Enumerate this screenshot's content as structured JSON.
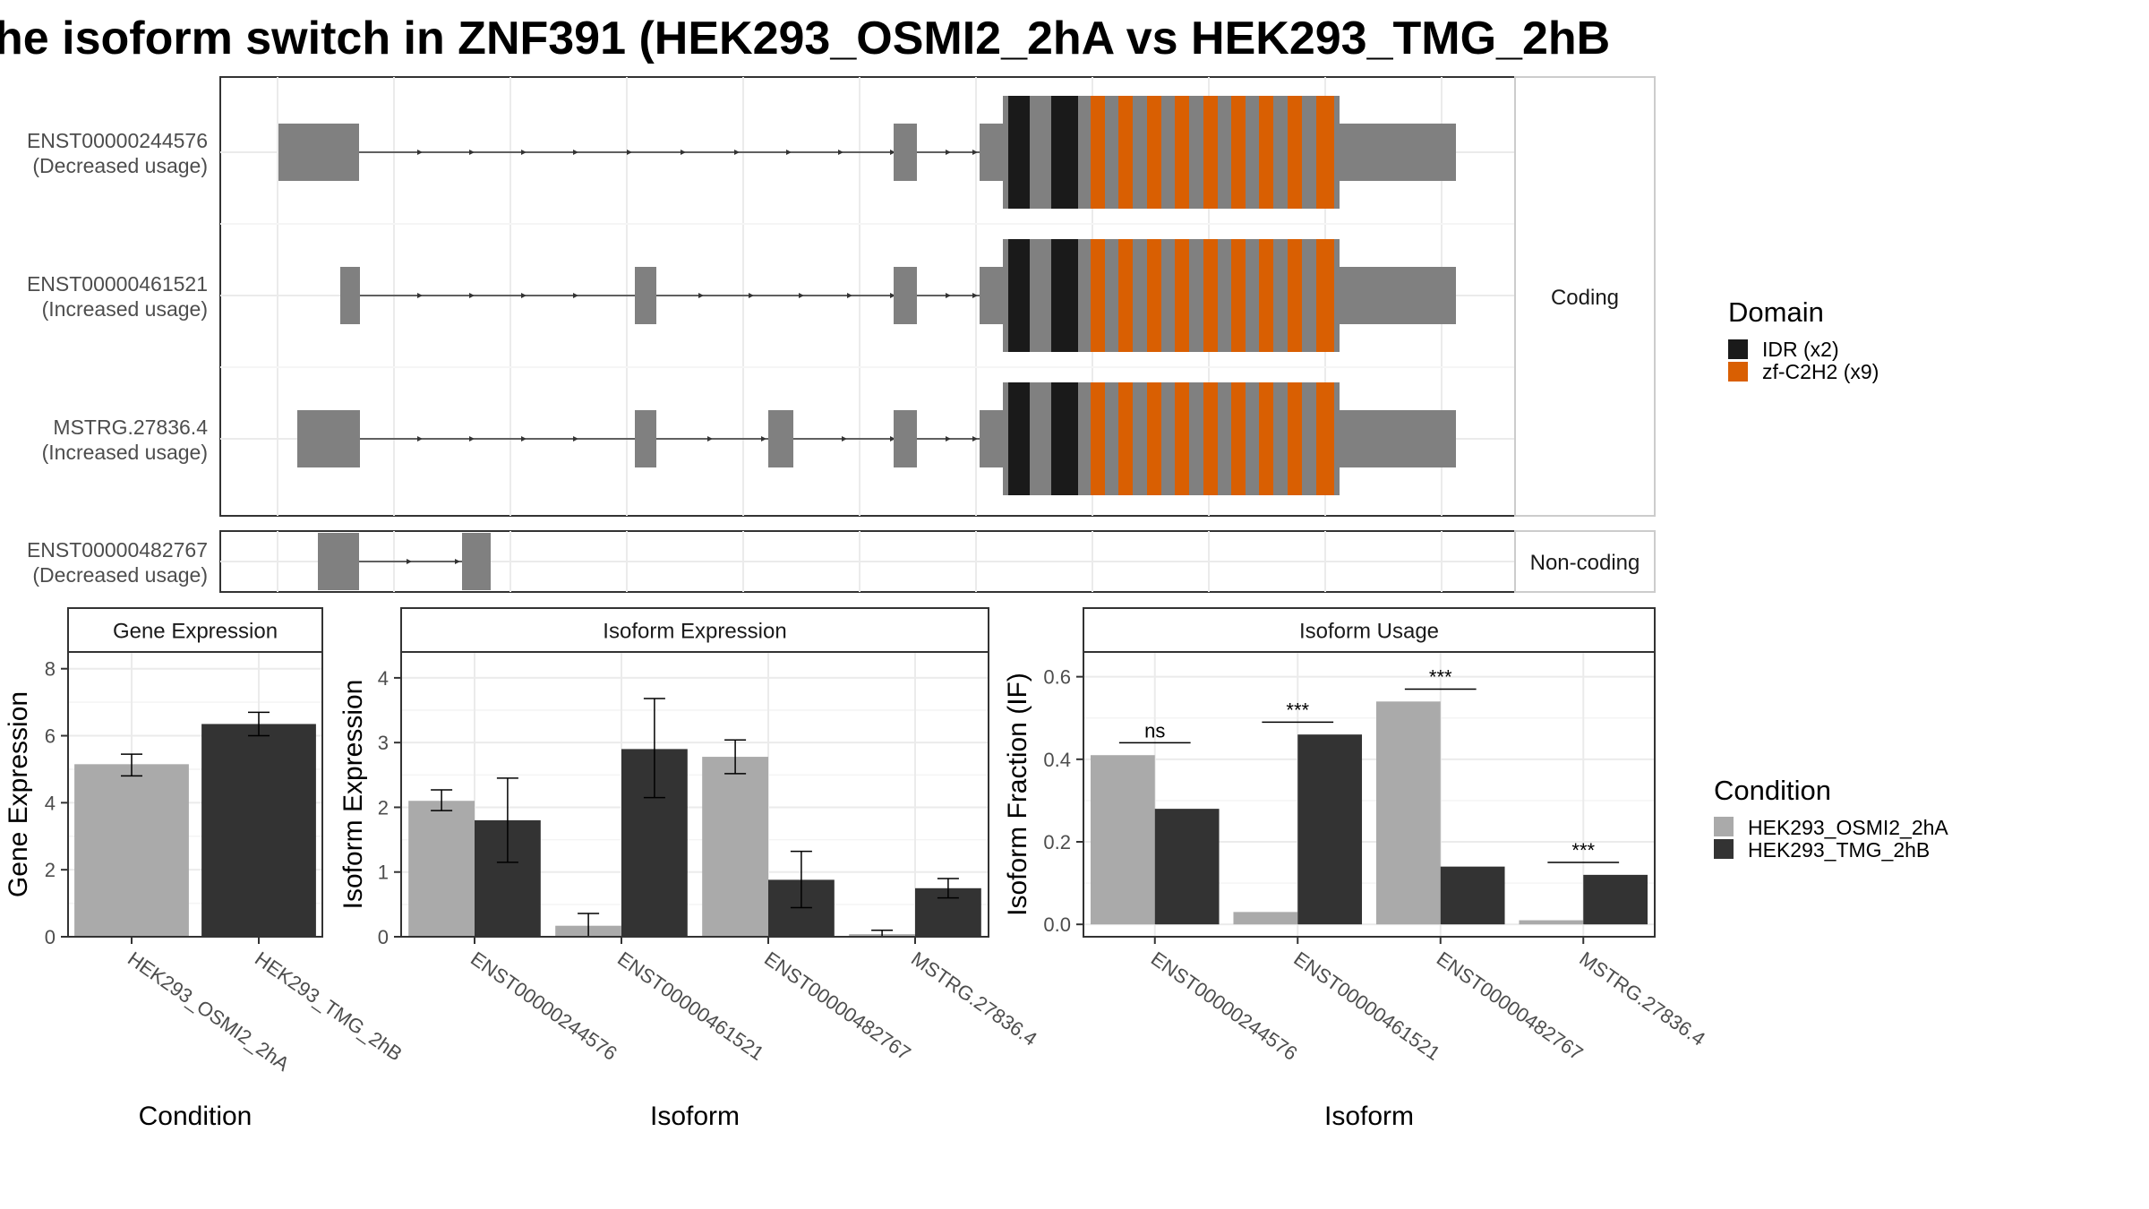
{
  "title": "he isoform switch in ZNF391 (HEK293_OSMI2_2hA vs HEK293_TMG_2hB",
  "structure": {
    "coding_label": "Coding",
    "noncoding_label": "Non-coding",
    "transcripts": [
      {
        "id": "ENST00000244576",
        "usage": "(Decreased usage)",
        "group": "coding"
      },
      {
        "id": "ENST00000461521",
        "usage": "(Increased usage)",
        "group": "coding"
      },
      {
        "id": "MSTRG.27836.4",
        "usage": "(Increased usage)",
        "group": "coding"
      },
      {
        "id": "ENST00000482767",
        "usage": "(Decreased usage)",
        "group": "noncoding"
      }
    ],
    "domain_legend": {
      "title": "Domain",
      "items": [
        {
          "label": "IDR (x2)",
          "color": "#1a1a1a"
        },
        {
          "label": "zf-C2H2 (x9)",
          "color": "#d95f02"
        }
      ]
    },
    "exon_color": "#808080"
  },
  "condition_legend": {
    "title": "Condition",
    "items": [
      {
        "label": "HEK293_OSMI2_2hA",
        "color": "#aaaaaa"
      },
      {
        "label": "HEK293_TMG_2hB",
        "color": "#333333"
      }
    ]
  },
  "chart_data": [
    {
      "type": "bar",
      "title": "Gene Expression",
      "xlabel": "Condition",
      "ylabel": "Gene Expression",
      "categories": [
        "HEK293_OSMI2_2hA",
        "HEK293_TMG_2hB"
      ],
      "values": [
        5.15,
        6.35
      ],
      "errors": [
        [
          4.8,
          5.45
        ],
        [
          6.0,
          6.7
        ]
      ],
      "ylim": [
        0,
        8.5
      ],
      "yticks": [
        0,
        2,
        4,
        6,
        8
      ]
    },
    {
      "type": "bar",
      "title": "Isoform Expression",
      "xlabel": "Isoform",
      "ylabel": "Isoform Expression",
      "categories": [
        "ENST00000244576",
        "ENST00000461521",
        "ENST00000482767",
        "MSTRG.27836.4"
      ],
      "series": [
        {
          "name": "HEK293_OSMI2_2hA",
          "values": [
            2.1,
            0.17,
            2.78,
            0.04
          ],
          "errors": [
            [
              1.95,
              2.27
            ],
            [
              0.0,
              0.36
            ],
            [
              2.52,
              3.04
            ],
            [
              0.0,
              0.1
            ]
          ]
        },
        {
          "name": "HEK293_TMG_2hB",
          "values": [
            1.8,
            2.9,
            0.88,
            0.75
          ],
          "errors": [
            [
              1.15,
              2.45
            ],
            [
              2.15,
              3.68
            ],
            [
              0.45,
              1.32
            ],
            [
              0.6,
              0.9
            ]
          ]
        }
      ],
      "ylim": [
        0,
        4.4
      ],
      "yticks": [
        0,
        1,
        2,
        3,
        4
      ]
    },
    {
      "type": "bar",
      "title": "Isoform Usage",
      "xlabel": "Isoform",
      "ylabel": "Isoform Fraction (IF)",
      "categories": [
        "ENST00000244576",
        "ENST00000461521",
        "ENST00000482767",
        "MSTRG.27836.4"
      ],
      "series": [
        {
          "name": "HEK293_OSMI2_2hA",
          "values": [
            0.41,
            0.03,
            0.54,
            0.01
          ]
        },
        {
          "name": "HEK293_TMG_2hB",
          "values": [
            0.28,
            0.46,
            0.14,
            0.12
          ]
        }
      ],
      "significance": [
        {
          "label": "ns",
          "y": 0.44
        },
        {
          "label": "***",
          "y": 0.49
        },
        {
          "label": "***",
          "y": 0.57
        },
        {
          "label": "***",
          "y": 0.15
        }
      ],
      "ylim": [
        -0.03,
        0.66
      ],
      "yticks": [
        0.0,
        0.2,
        0.4,
        0.6
      ]
    }
  ]
}
